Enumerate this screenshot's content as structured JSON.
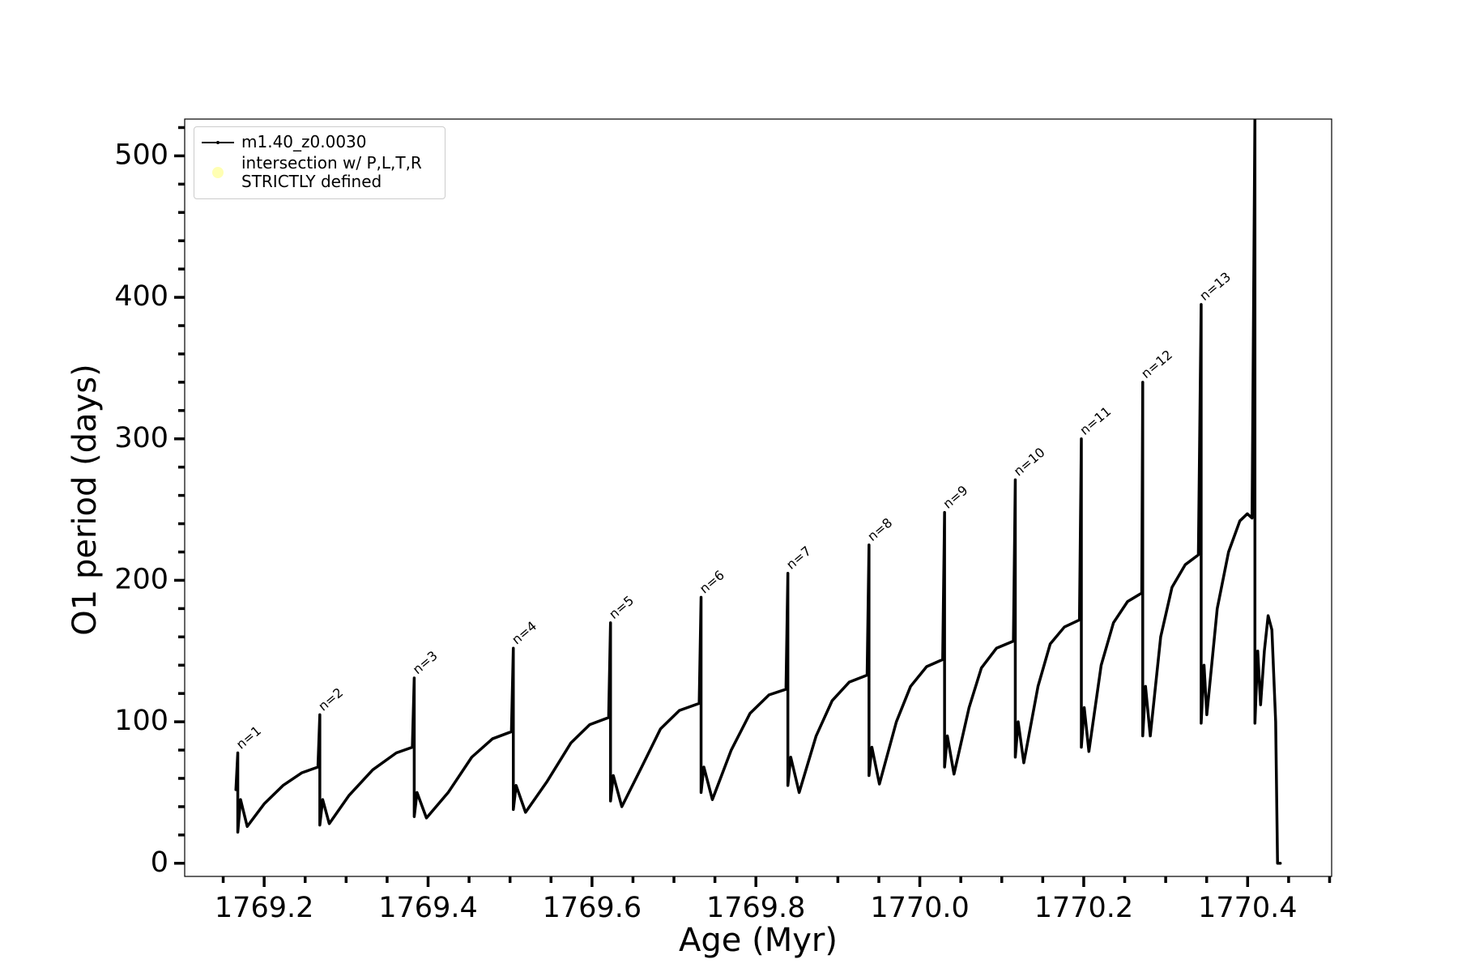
{
  "chart_data": {
    "type": "line",
    "x_label": "Age (Myr)",
    "y_label": "O1 period (days)",
    "xlim": [
      1769.103,
      1770.5025
    ],
    "ylim": [
      -9.3,
      526
    ],
    "xticks": [
      1769.2,
      1769.4,
      1769.6,
      1769.8,
      {
        "value": 1770.0,
        "label": "1770.0"
      },
      1770.2,
      1770.4
    ],
    "yticks": [
      0,
      100,
      200,
      300,
      400,
      500
    ],
    "xminorticks": [
      1769.15,
      1769.25,
      1769.3,
      1769.35,
      1769.45,
      1769.5,
      1769.55,
      1769.65,
      1769.7,
      1769.75,
      1769.85,
      1769.9,
      1769.95,
      1770.05,
      1770.1,
      1770.15,
      1770.25,
      1770.3,
      1770.35,
      1770.45,
      1770.5
    ],
    "yminorticks": [
      20,
      40,
      60,
      80,
      120,
      140,
      160,
      180,
      220,
      240,
      260,
      280,
      320,
      340,
      360,
      380,
      420,
      440,
      460,
      480,
      520
    ],
    "legend": "upper left",
    "series": [
      {
        "name": "m1.40_z0.0030",
        "color": "#000000",
        "x": [
          1769.1655,
          1769.1678,
          1769.1678,
          1769.1712,
          1769.1793,
          1769.2,
          1769.223,
          1769.2461,
          1769.2656,
          1769.2679,
          1769.2679,
          1769.2714,
          1769.2794,
          1769.3036,
          1769.3324,
          1769.3612,
          1769.3808,
          1769.3831,
          1769.3831,
          1769.3865,
          1769.398,
          1769.4245,
          1769.4533,
          1769.4786,
          1769.5017,
          1769.504,
          1769.504,
          1769.5074,
          1769.5189,
          1769.5454,
          1769.5742,
          1769.5972,
          1769.6203,
          1769.6226,
          1769.6226,
          1769.626,
          1769.6364,
          1769.6606,
          1769.6836,
          1769.7066,
          1769.7308,
          1769.7331,
          1769.7331,
          1769.7365,
          1769.7469,
          1769.7699,
          1769.7929,
          1769.816,
          1769.8367,
          1769.839,
          1769.839,
          1769.8425,
          1769.8528,
          1769.8735,
          1769.8931,
          1769.9138,
          1769.9357,
          1769.938,
          1769.938,
          1769.9415,
          1769.9507,
          1769.9714,
          1769.9887,
          1770.0083,
          1770.0279,
          1770.0302,
          1770.0302,
          1770.0336,
          1770.0417,
          1770.0601,
          1770.0751,
          1770.0935,
          1770.1142,
          1770.1165,
          1770.1165,
          1770.12,
          1770.1269,
          1770.1442,
          1770.1591,
          1770.1764,
          1770.1948,
          1770.1971,
          1770.1971,
          1770.2006,
          1770.2063,
          1770.2213,
          1770.2363,
          1770.2535,
          1770.2708,
          1770.272,
          1770.272,
          1770.2754,
          1770.2812,
          1770.2939,
          1770.3077,
          1770.3238,
          1770.3399,
          1770.3433,
          1770.3433,
          1770.3468,
          1770.3502,
          1770.3629,
          1770.3767,
          1770.3905,
          1770.3996,
          1770.4054,
          1770.4089,
          1770.4089,
          1770.4123,
          1770.4158,
          1770.4204,
          1770.425,
          1770.4296,
          1770.4342,
          1770.4365,
          1770.4399
        ],
        "values": [
          52,
          78,
          22,
          45,
          26,
          42,
          55,
          64,
          68,
          105,
          27,
          45,
          28,
          48,
          66,
          78,
          82,
          131,
          33,
          50,
          32,
          50,
          75,
          88,
          93,
          152,
          38,
          55,
          36,
          58,
          85,
          98,
          103,
          170,
          44,
          62,
          40,
          68,
          95,
          108,
          113,
          188,
          50,
          68,
          45,
          80,
          106,
          119,
          123,
          205,
          55,
          75,
          50,
          90,
          115,
          128,
          133,
          225,
          62,
          82,
          56,
          100,
          125,
          139,
          144,
          248,
          68,
          90,
          63,
          110,
          138,
          152,
          157,
          271,
          75,
          100,
          71,
          125,
          155,
          167,
          172,
          300,
          82,
          110,
          79,
          140,
          170,
          185,
          191,
          340,
          90,
          125,
          90,
          160,
          195,
          211,
          218,
          395,
          99,
          140,
          105,
          180,
          220,
          242,
          247,
          244,
          530,
          99,
          150,
          112,
          150,
          175,
          165,
          100,
          0,
          0
        ]
      },
      {
        "name": "intersection w/ P,L,T,R\nSTRICTLY defined",
        "color": "#ffffb3",
        "type": "scatter",
        "x": [],
        "values": []
      }
    ],
    "annotations": [
      {
        "text": "n=1",
        "x": 1769.1678,
        "y": 78
      },
      {
        "text": "n=2",
        "x": 1769.2679,
        "y": 105
      },
      {
        "text": "n=3",
        "x": 1769.3831,
        "y": 131
      },
      {
        "text": "n=4",
        "x": 1769.504,
        "y": 152
      },
      {
        "text": "n=5",
        "x": 1769.6226,
        "y": 170
      },
      {
        "text": "n=6",
        "x": 1769.7331,
        "y": 188
      },
      {
        "text": "n=7",
        "x": 1769.839,
        "y": 205
      },
      {
        "text": "n=8",
        "x": 1769.938,
        "y": 225
      },
      {
        "text": "n=9",
        "x": 1770.0302,
        "y": 248
      },
      {
        "text": "n=10",
        "x": 1770.1165,
        "y": 271
      },
      {
        "text": "n=11",
        "x": 1770.1971,
        "y": 300
      },
      {
        "text": "n=12",
        "x": 1770.272,
        "y": 340
      },
      {
        "text": "n=13",
        "x": 1770.3433,
        "y": 395
      }
    ]
  }
}
